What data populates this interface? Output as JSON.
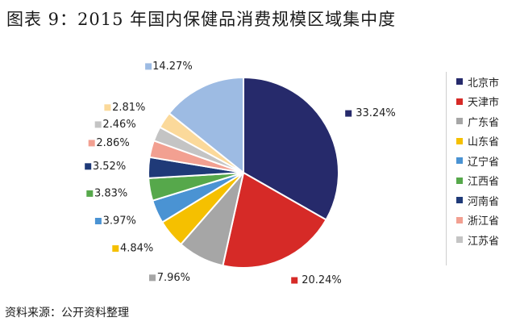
{
  "title": "图表 9：2015 年国内保健品消费规模区域集中度",
  "source": "资料来源：公开资料整理",
  "chart_data": {
    "type": "pie",
    "title": "图表 9：2015 年国内保健品消费规模区域集中度",
    "legend_position": "right",
    "slices": [
      {
        "name": "北京市",
        "value": 33.24,
        "label": "33.24%",
        "color": "#262a6b"
      },
      {
        "name": "天津市",
        "value": 20.24,
        "label": "20.24%",
        "color": "#d62a27"
      },
      {
        "name": "广东省",
        "value": 7.96,
        "label": "7.96%",
        "color": "#a6a6a6"
      },
      {
        "name": "山东省",
        "value": 4.84,
        "label": "4.84%",
        "color": "#f5c000"
      },
      {
        "name": "辽宁省",
        "value": 3.97,
        "label": "3.97%",
        "color": "#4a93d3"
      },
      {
        "name": "江西省",
        "value": 3.83,
        "label": "3.83%",
        "color": "#56a84b"
      },
      {
        "name": "河南省",
        "value": 3.52,
        "label": "3.52%",
        "color": "#1f3a78"
      },
      {
        "name": "浙江省",
        "value": 2.86,
        "label": "2.86%",
        "color": "#f2a091"
      },
      {
        "name": "江苏省",
        "value": 2.46,
        "label": "2.46%",
        "color": "#c4c4c4"
      },
      {
        "name": "",
        "value": 2.81,
        "label": "2.81%",
        "color": "#fbd99a"
      },
      {
        "name": "",
        "value": 14.27,
        "label": "14.27%",
        "color": "#9dbbe3"
      }
    ]
  }
}
